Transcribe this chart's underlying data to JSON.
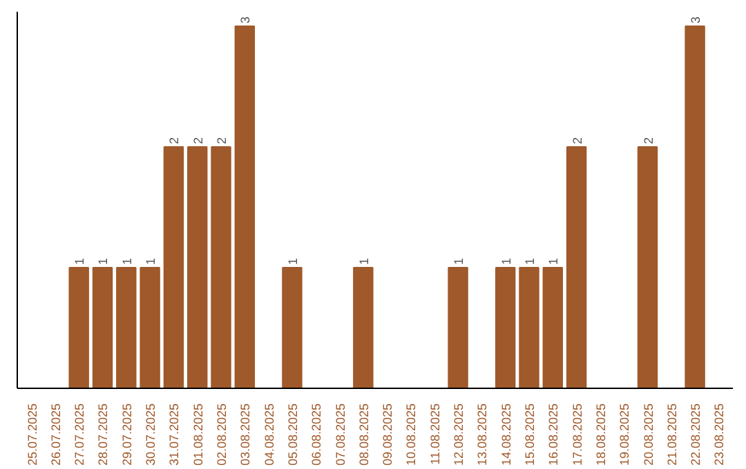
{
  "chart_data": {
    "type": "bar",
    "categories": [
      "25.07.2025",
      "26.07.2025",
      "27.07.2025",
      "28.07.2025",
      "29.07.2025",
      "30.07.2025",
      "31.07.2025",
      "01.08.2025",
      "02.08.2025",
      "03.08.2025",
      "04.08.2025",
      "05.08.2025",
      "06.08.2025",
      "07.08.2025",
      "08.08.2025",
      "09.08.2025",
      "10.08.2025",
      "11.08.2025",
      "12.08.2025",
      "13.08.2025",
      "14.08.2025",
      "15.08.2025",
      "16.08.2025",
      "17.08.2025",
      "18.08.2025",
      "19.08.2025",
      "20.08.2025",
      "21.08.2025",
      "22.08.2025",
      "23.08.2025"
    ],
    "values": [
      null,
      null,
      1,
      1,
      1,
      1,
      2,
      2,
      2,
      3,
      null,
      1,
      null,
      null,
      1,
      null,
      null,
      null,
      1,
      null,
      1,
      1,
      1,
      2,
      null,
      null,
      2,
      null,
      3,
      null
    ],
    "color": "#a0592a",
    "data_labels": true,
    "tick_labels": "x"
  }
}
